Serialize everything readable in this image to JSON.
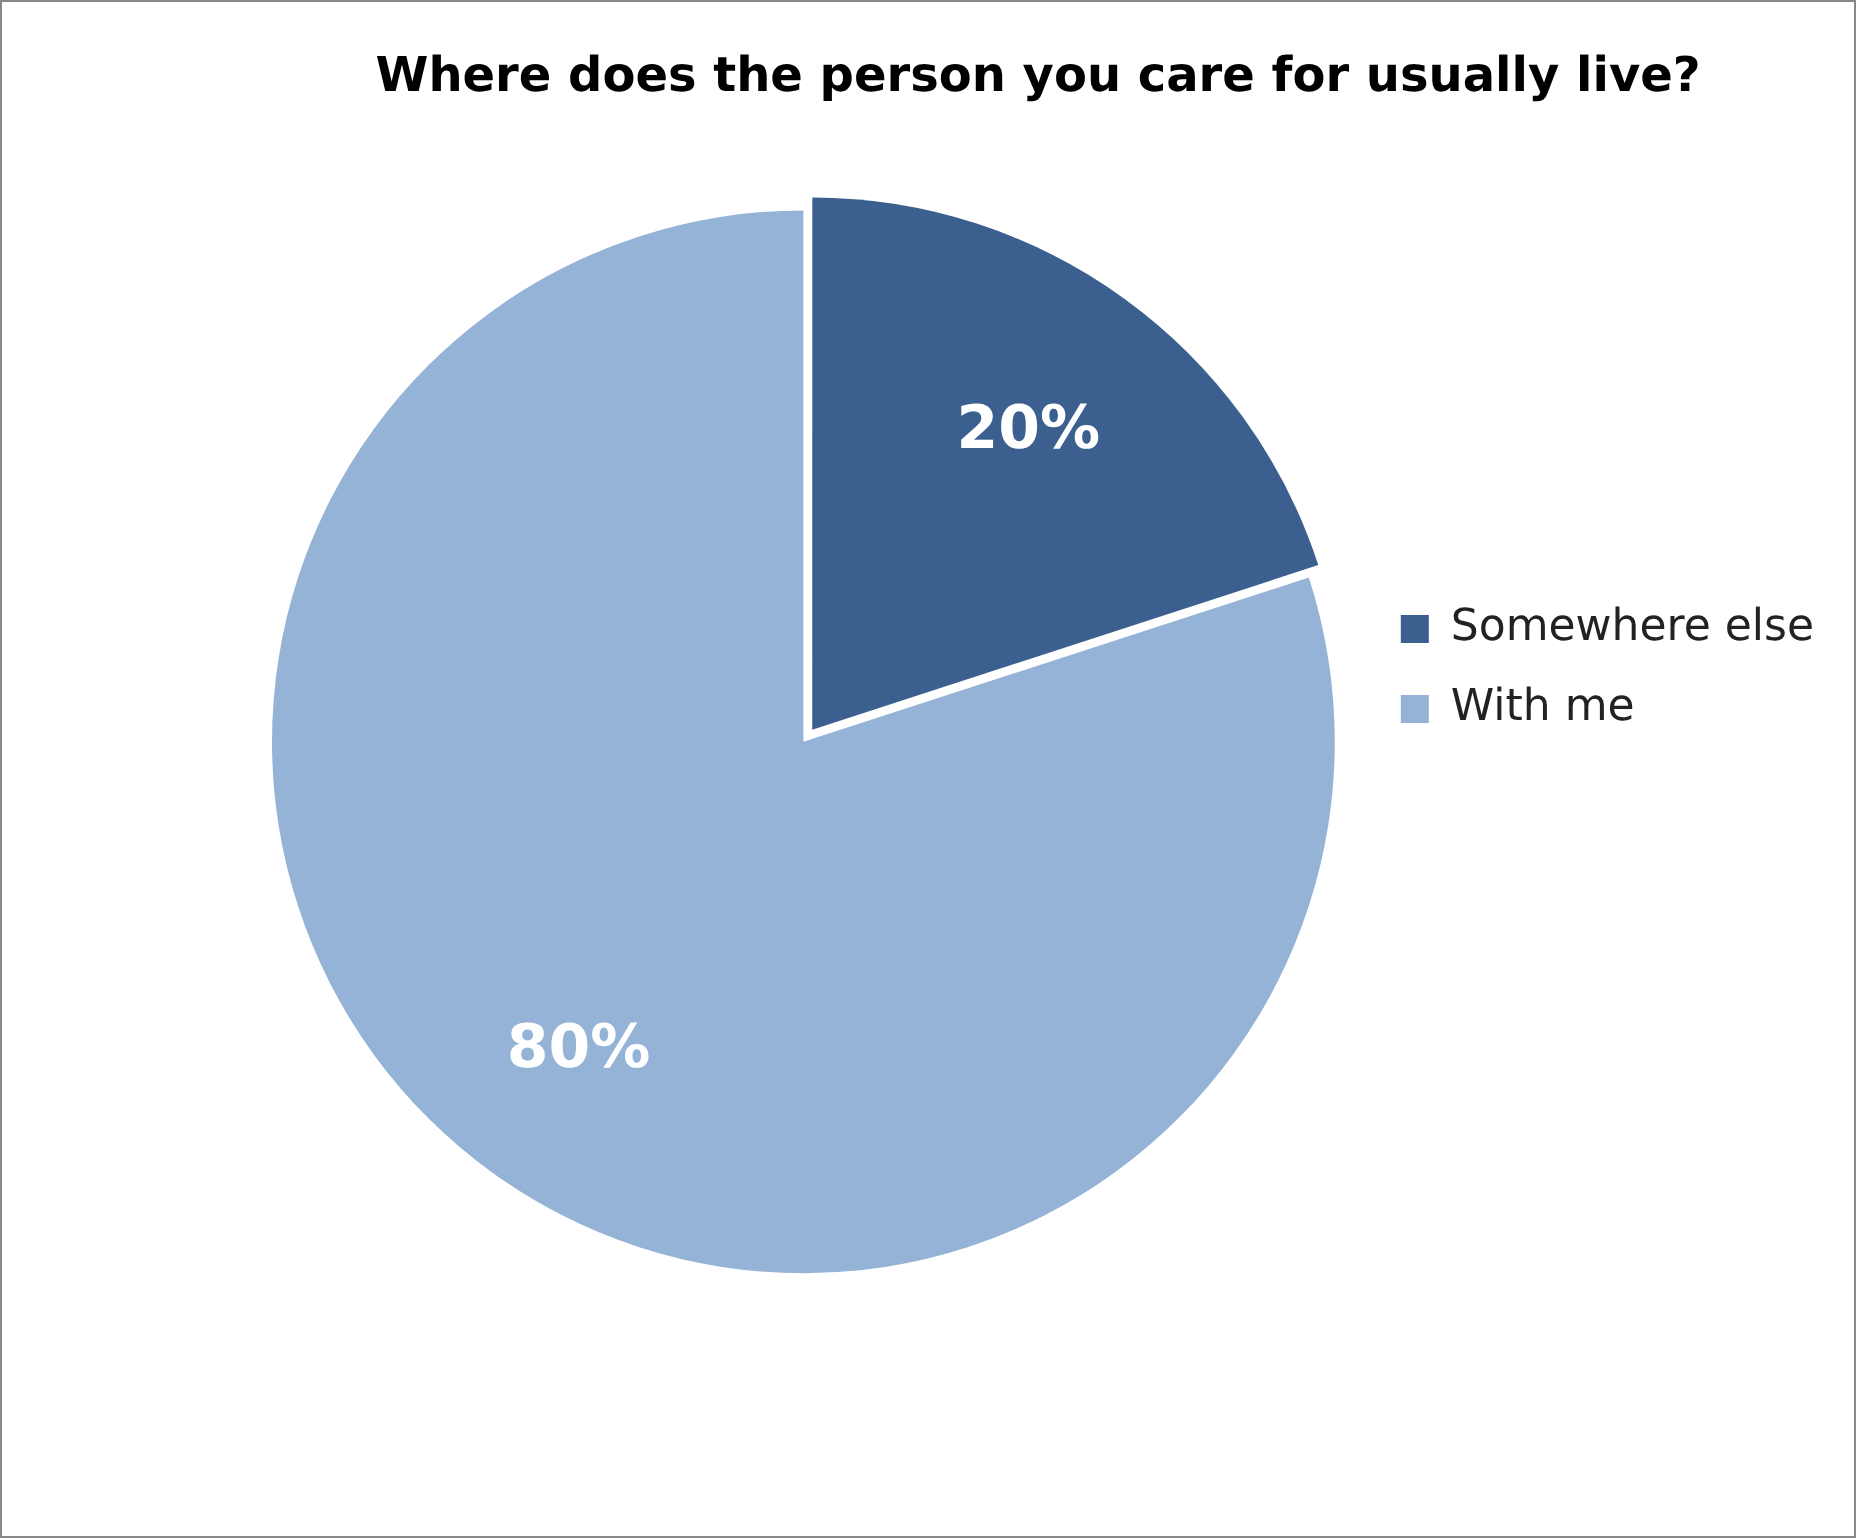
{
  "chart_data": {
    "type": "pie",
    "title": "Where does the person you care for usually live?",
    "categories": [
      "Somewhere else",
      "With me"
    ],
    "values": [
      20,
      80
    ],
    "colors": [
      "#3b5f8e",
      "#95b3d7"
    ],
    "value_labels": [
      "20%",
      "80%"
    ],
    "legend": "right"
  }
}
